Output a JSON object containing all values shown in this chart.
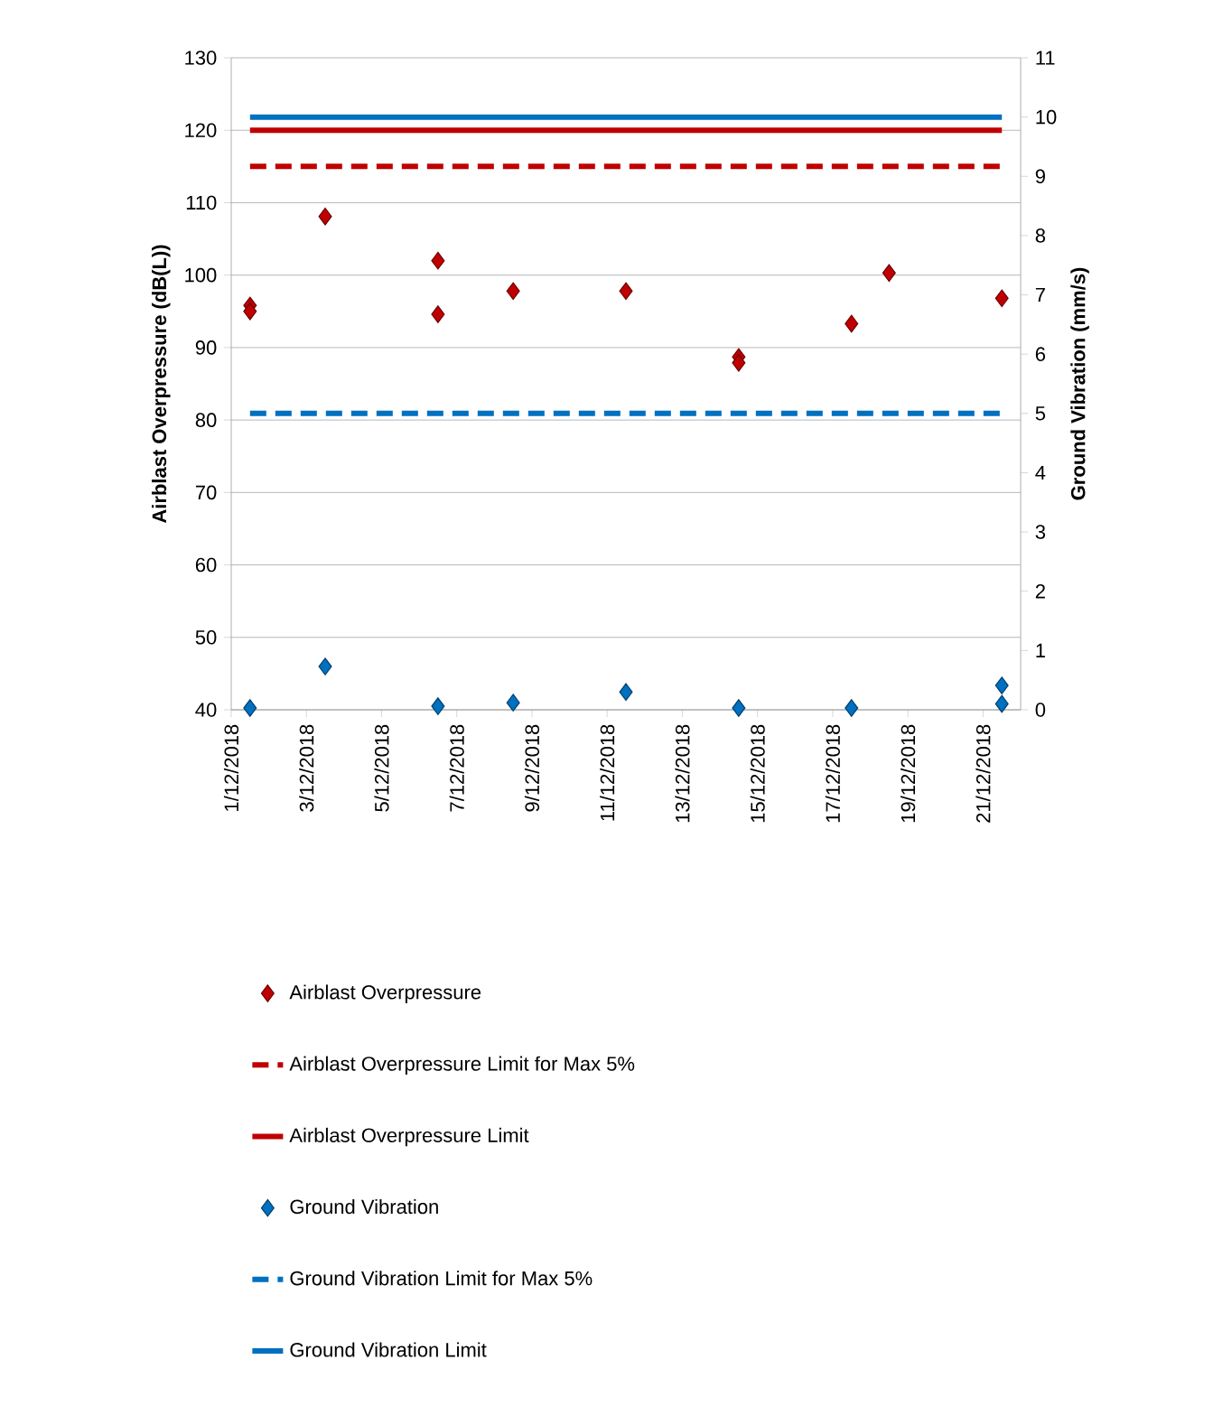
{
  "chart_data": {
    "type": "scatter",
    "xlim": [
      "2018-12-01",
      "2018-12-22"
    ],
    "xticks": [
      {
        "value": "2018-12-01",
        "label": "1/12/2018"
      },
      {
        "value": "2018-12-03",
        "label": "3/12/2018"
      },
      {
        "value": "2018-12-05",
        "label": "5/12/2018"
      },
      {
        "value": "2018-12-07",
        "label": "7/12/2018"
      },
      {
        "value": "2018-12-09",
        "label": "9/12/2018"
      },
      {
        "value": "2018-12-11",
        "label": "11/12/2018"
      },
      {
        "value": "2018-12-13",
        "label": "13/12/2018"
      },
      {
        "value": "2018-12-15",
        "label": "15/12/2018"
      },
      {
        "value": "2018-12-17",
        "label": "17/12/2018"
      },
      {
        "value": "2018-12-19",
        "label": "19/12/2018"
      },
      {
        "value": "2018-12-21",
        "label": "21/12/2018"
      }
    ],
    "ylim": [
      40,
      130
    ],
    "yticks": [
      40,
      50,
      60,
      70,
      80,
      90,
      100,
      110,
      120,
      130
    ],
    "y2lim": [
      0,
      11
    ],
    "y2ticks": [
      0,
      1,
      2,
      3,
      4,
      5,
      6,
      7,
      8,
      9,
      10,
      11
    ],
    "ylabel": "Airblast Overpressure (dB(L))",
    "y2label": "Ground Vibration (mm/s)",
    "grid": "y",
    "legend": "bottom",
    "series": [
      {
        "name": "Airblast Overpressure",
        "type": "scatter",
        "marker": "diamond",
        "color": "#c00000",
        "x": [
          "2018-12-01T12:00",
          "2018-12-01T12:00",
          "2018-12-03T12:00",
          "2018-12-06T12:00",
          "2018-12-06T12:00",
          "2018-12-08T12:00",
          "2018-12-11T12:00",
          "2018-12-14T12:00",
          "2018-12-14T12:00",
          "2018-12-17T12:00",
          "2018-12-18T12:00",
          "2018-12-21T12:00"
        ],
        "values": [
          95.8,
          95.0,
          108.1,
          102.0,
          94.6,
          97.8,
          97.8,
          88.7,
          87.9,
          93.3,
          100.3,
          96.8
        ]
      },
      {
        "name": "Airblast Overpressure Limit for Max 5%",
        "type": "line",
        "line_style": "dashed",
        "color": "#c00000",
        "x": [
          "2018-12-01T12:00",
          "2018-12-21T12:00"
        ],
        "values": [
          115,
          115
        ]
      },
      {
        "name": "Airblast Overpressure Limit",
        "type": "line",
        "line_style": "solid",
        "color": "#c00000",
        "x": [
          "2018-12-01T12:00",
          "2018-12-21T12:00"
        ],
        "values": [
          120,
          120
        ]
      },
      {
        "name": "Ground Vibration",
        "type": "scatter",
        "marker": "diamond",
        "axis": "y2",
        "color": "#0070c0",
        "x": [
          "2018-12-01T12:00",
          "2018-12-03T12:00",
          "2018-12-06T12:00",
          "2018-12-08T12:00",
          "2018-12-11T12:00",
          "2018-12-14T12:00",
          "2018-12-17T12:00",
          "2018-12-21T12:00",
          "2018-12-21T12:00"
        ],
        "values": [
          0.03,
          0.73,
          0.06,
          0.12,
          0.3,
          0.03,
          0.03,
          0.41,
          0.1
        ]
      },
      {
        "name": "Ground Vibration Limit for Max 5%",
        "type": "line",
        "line_style": "dashed",
        "axis": "y2",
        "color": "#0070c0",
        "x": [
          "2018-12-01T12:00",
          "2018-12-21T12:00"
        ],
        "values": [
          5,
          5
        ]
      },
      {
        "name": "Ground Vibration Limit",
        "type": "line",
        "line_style": "solid",
        "axis": "y2",
        "color": "#0070c0",
        "x": [
          "2018-12-01T12:00",
          "2018-12-21T12:00"
        ],
        "values": [
          10,
          10
        ]
      }
    ]
  }
}
